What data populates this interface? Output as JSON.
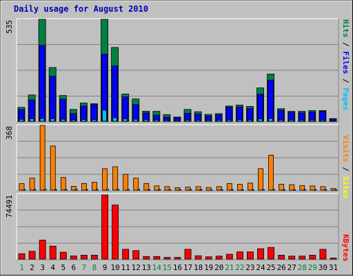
{
  "chart_data": [
    {
      "type": "bar",
      "title": "Daily usage for August 2010",
      "categories": [
        "1",
        "2",
        "3",
        "4",
        "5",
        "6",
        "7",
        "8",
        "9",
        "10",
        "11",
        "12",
        "13",
        "14",
        "15",
        "16",
        "17",
        "18",
        "19",
        "20",
        "21",
        "22",
        "23",
        "24",
        "25",
        "26",
        "27",
        "28",
        "29",
        "30",
        "31"
      ],
      "weekend_days": [
        "1",
        "7",
        "8",
        "14",
        "15",
        "21",
        "22",
        "28",
        "29"
      ],
      "ymax_label": "535",
      "ylim": [
        0,
        535
      ],
      "grid": true,
      "series": [
        {
          "name": "Hits",
          "color": "#008040",
          "values": [
            73,
            138,
            535,
            282,
            135,
            62,
            96,
            92,
            535,
            387,
            143,
            117,
            53,
            52,
            35,
            22,
            62,
            50,
            36,
            40,
            80,
            85,
            78,
            175,
            248,
            66,
            52,
            52,
            56,
            56,
            14
          ]
        },
        {
          "name": "Files",
          "color": "#0000ff",
          "values": [
            62,
            112,
            398,
            236,
            116,
            40,
            80,
            88,
            352,
            290,
            128,
            88,
            44,
            32,
            22,
            20,
            42,
            38,
            28,
            34,
            74,
            75,
            66,
            142,
            216,
            58,
            47,
            44,
            48,
            52,
            12
          ]
        },
        {
          "name": "Pages",
          "color": "#00c0ff",
          "values": [
            10,
            13,
            14,
            13,
            10,
            7,
            9,
            8,
            58,
            18,
            12,
            10,
            8,
            7,
            5,
            4,
            7,
            6,
            5,
            6,
            7,
            8,
            7,
            12,
            14,
            7,
            7,
            6,
            7,
            6,
            2
          ]
        }
      ]
    },
    {
      "type": "bar",
      "categories": [
        "1",
        "2",
        "3",
        "4",
        "5",
        "6",
        "7",
        "8",
        "9",
        "10",
        "11",
        "12",
        "13",
        "14",
        "15",
        "16",
        "17",
        "18",
        "19",
        "20",
        "21",
        "22",
        "23",
        "24",
        "25",
        "26",
        "27",
        "28",
        "29",
        "30",
        "31"
      ],
      "ymax_label": "368",
      "ylim": [
        0,
        368
      ],
      "grid": true,
      "series": [
        {
          "name": "Visits",
          "color": "#ff8000",
          "values": [
            37,
            68,
            368,
            251,
            72,
            21,
            38,
            45,
            122,
            133,
            90,
            68,
            38,
            24,
            20,
            14,
            17,
            20,
            15,
            20,
            38,
            33,
            40,
            122,
            199,
            34,
            31,
            26,
            24,
            20,
            9
          ]
        },
        {
          "name": "Sites",
          "color": "#ffff00",
          "values": [
            3,
            4,
            5,
            4,
            4,
            3,
            3,
            4,
            5,
            5,
            4,
            4,
            3,
            3,
            3,
            2,
            3,
            3,
            2,
            3,
            3,
            3,
            3,
            4,
            4,
            3,
            3,
            3,
            3,
            3,
            2
          ]
        }
      ]
    },
    {
      "type": "bar",
      "categories": [
        "1",
        "2",
        "3",
        "4",
        "5",
        "6",
        "7",
        "8",
        "9",
        "10",
        "11",
        "12",
        "13",
        "14",
        "15",
        "16",
        "17",
        "18",
        "19",
        "20",
        "21",
        "22",
        "23",
        "24",
        "25",
        "26",
        "27",
        "28",
        "29",
        "30",
        "31"
      ],
      "ymax_label": "74491",
      "ylim": [
        0,
        74491
      ],
      "grid": true,
      "series": [
        {
          "name": "KBytes",
          "color": "#ff0000",
          "values": [
            6200,
            9000,
            22000,
            15000,
            7900,
            3600,
            4500,
            4500,
            74491,
            62800,
            11300,
            9800,
            3000,
            3000,
            1900,
            1900,
            11300,
            3800,
            2600,
            3400,
            5600,
            8300,
            8300,
            12000,
            13500,
            4500,
            3400,
            3400,
            4500,
            11300,
            1100
          ]
        }
      ]
    }
  ]
}
